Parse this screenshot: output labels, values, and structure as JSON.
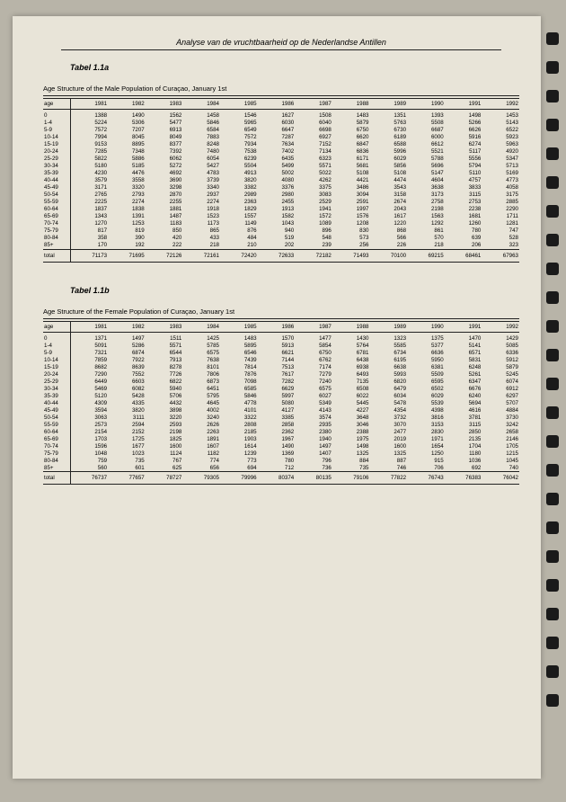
{
  "header": "Analyse van de vruchtbaarheid op de Nederlandse Antillen",
  "tableA": {
    "title": "Tabel 1.1a",
    "subtitle": "Age Structure of the Male Population of Curaçao, January 1st",
    "ageHeader": "age",
    "years": [
      "1981",
      "1982",
      "1983",
      "1984",
      "1985",
      "1986",
      "1987",
      "1988",
      "1989",
      "1990",
      "1991",
      "1992"
    ],
    "rows": [
      {
        "age": "0",
        "v": [
          "1388",
          "1490",
          "1562",
          "1458",
          "1546",
          "1627",
          "1508",
          "1483",
          "1351",
          "1393",
          "1498",
          "1453"
        ]
      },
      {
        "age": "1-4",
        "v": [
          "5224",
          "5306",
          "5477",
          "5846",
          "5965",
          "6030",
          "6040",
          "5879",
          "5763",
          "5508",
          "5266",
          "5143"
        ]
      },
      {
        "age": "5-9",
        "v": [
          "7572",
          "7207",
          "6913",
          "6584",
          "6549",
          "6647",
          "6698",
          "6750",
          "6730",
          "6687",
          "6626",
          "6522"
        ]
      },
      {
        "age": "10-14",
        "v": [
          "7994",
          "8045",
          "8049",
          "7883",
          "7572",
          "7287",
          "6927",
          "6620",
          "6189",
          "6000",
          "5916",
          "5923"
        ]
      },
      {
        "age": "15-19",
        "v": [
          "9153",
          "8895",
          "8377",
          "8248",
          "7934",
          "7634",
          "7152",
          "6847",
          "6588",
          "6612",
          "6274",
          "5963"
        ]
      },
      {
        "age": "20-24",
        "v": [
          "7285",
          "7348",
          "7392",
          "7480",
          "7538",
          "7402",
          "7134",
          "6836",
          "5996",
          "5521",
          "5117",
          "4920"
        ]
      },
      {
        "age": "25-29",
        "v": [
          "5822",
          "5886",
          "6062",
          "6054",
          "6239",
          "6435",
          "6323",
          "6171",
          "6029",
          "5788",
          "5556",
          "5347"
        ]
      },
      {
        "age": "30-34",
        "v": [
          "5180",
          "5185",
          "5272",
          "5427",
          "5504",
          "5499",
          "5571",
          "5681",
          "5856",
          "5696",
          "5794",
          "5713"
        ]
      },
      {
        "age": "35-39",
        "v": [
          "4230",
          "4476",
          "4692",
          "4783",
          "4913",
          "5002",
          "5022",
          "5108",
          "5108",
          "5147",
          "5110",
          "5169"
        ]
      },
      {
        "age": "40-44",
        "v": [
          "3579",
          "3558",
          "3690",
          "3739",
          "3820",
          "4080",
          "4262",
          "4421",
          "4474",
          "4604",
          "4757",
          "4773"
        ]
      },
      {
        "age": "45-49",
        "v": [
          "3171",
          "3320",
          "3298",
          "3340",
          "3382",
          "3376",
          "3375",
          "3486",
          "3543",
          "3638",
          "3833",
          "4058"
        ]
      },
      {
        "age": "50-54",
        "v": [
          "2765",
          "2793",
          "2870",
          "2937",
          "2989",
          "2980",
          "3083",
          "3094",
          "3158",
          "3173",
          "3115",
          "3175"
        ]
      },
      {
        "age": "55-59",
        "v": [
          "2225",
          "2274",
          "2255",
          "2274",
          "2363",
          "2455",
          "2529",
          "2591",
          "2674",
          "2758",
          "2753",
          "2885"
        ]
      },
      {
        "age": "60-64",
        "v": [
          "1837",
          "1838",
          "1881",
          "1918",
          "1829",
          "1913",
          "1941",
          "1997",
          "2043",
          "2198",
          "2238",
          "2290"
        ]
      },
      {
        "age": "65-69",
        "v": [
          "1343",
          "1391",
          "1487",
          "1523",
          "1557",
          "1582",
          "1572",
          "1576",
          "1617",
          "1563",
          "1681",
          "1711"
        ]
      },
      {
        "age": "70-74",
        "v": [
          "1270",
          "1253",
          "1183",
          "1173",
          "1149",
          "1043",
          "1089",
          "1208",
          "1220",
          "1292",
          "1260",
          "1281"
        ]
      },
      {
        "age": "75-79",
        "v": [
          "817",
          "819",
          "850",
          "865",
          "876",
          "940",
          "896",
          "830",
          "868",
          "861",
          "780",
          "747"
        ]
      },
      {
        "age": "80-84",
        "v": [
          "358",
          "390",
          "420",
          "433",
          "484",
          "519",
          "548",
          "573",
          "566",
          "570",
          "639",
          "528"
        ]
      },
      {
        "age": "85+",
        "v": [
          "170",
          "192",
          "222",
          "218",
          "210",
          "202",
          "239",
          "256",
          "226",
          "218",
          "206",
          "323"
        ]
      }
    ],
    "totalLabel": "total",
    "totals": [
      "71173",
      "71695",
      "72126",
      "72161",
      "72420",
      "72633",
      "72182",
      "71493",
      "70100",
      "69215",
      "68461",
      "67963"
    ]
  },
  "tableB": {
    "title": "Tabel 1.1b",
    "subtitle": "Age Structure of the Female Population of Curaçao, January 1st",
    "ageHeader": "age",
    "years": [
      "1981",
      "1982",
      "1983",
      "1984",
      "1985",
      "1986",
      "1987",
      "1988",
      "1989",
      "1990",
      "1991",
      "1992"
    ],
    "rows": [
      {
        "age": "0",
        "v": [
          "1371",
          "1497",
          "1511",
          "1425",
          "1483",
          "1570",
          "1477",
          "1430",
          "1323",
          "1375",
          "1470",
          "1429"
        ]
      },
      {
        "age": "1-4",
        "v": [
          "5091",
          "5286",
          "5571",
          "5785",
          "5895",
          "5913",
          "5854",
          "5764",
          "5585",
          "5377",
          "5141",
          "5085"
        ]
      },
      {
        "age": "5-9",
        "v": [
          "7321",
          "6874",
          "6544",
          "6575",
          "6546",
          "6621",
          "6750",
          "6781",
          "6734",
          "6636",
          "6571",
          "6336"
        ]
      },
      {
        "age": "10-14",
        "v": [
          "7859",
          "7922",
          "7913",
          "7638",
          "7439",
          "7144",
          "6762",
          "6438",
          "6195",
          "5950",
          "5831",
          "5912"
        ]
      },
      {
        "age": "15-19",
        "v": [
          "8682",
          "8639",
          "8278",
          "8101",
          "7814",
          "7513",
          "7174",
          "6938",
          "6638",
          "6381",
          "6248",
          "5879"
        ]
      },
      {
        "age": "20-24",
        "v": [
          "7290",
          "7552",
          "7726",
          "7806",
          "7876",
          "7617",
          "7279",
          "6493",
          "5993",
          "5509",
          "5261",
          "5245"
        ]
      },
      {
        "age": "25-29",
        "v": [
          "6449",
          "6603",
          "6822",
          "6873",
          "7098",
          "7282",
          "7240",
          "7135",
          "6820",
          "6595",
          "6347",
          "6074"
        ]
      },
      {
        "age": "30-34",
        "v": [
          "5469",
          "6082",
          "5940",
          "6451",
          "6585",
          "6629",
          "6575",
          "6508",
          "6479",
          "6502",
          "6676",
          "6912"
        ]
      },
      {
        "age": "35-39",
        "v": [
          "5120",
          "5428",
          "5706",
          "5795",
          "5846",
          "5997",
          "6027",
          "6022",
          "6034",
          "6029",
          "6240",
          "6297"
        ]
      },
      {
        "age": "40-44",
        "v": [
          "4309",
          "4335",
          "4432",
          "4645",
          "4778",
          "5080",
          "5349",
          "5445",
          "5478",
          "5539",
          "5694",
          "5707"
        ]
      },
      {
        "age": "45-49",
        "v": [
          "3594",
          "3820",
          "3898",
          "4002",
          "4101",
          "4127",
          "4143",
          "4227",
          "4354",
          "4398",
          "4616",
          "4884"
        ]
      },
      {
        "age": "50-54",
        "v": [
          "3063",
          "3111",
          "3220",
          "3240",
          "3322",
          "3385",
          "3574",
          "3648",
          "3732",
          "3816",
          "3781",
          "3730"
        ]
      },
      {
        "age": "55-59",
        "v": [
          "2573",
          "2594",
          "2593",
          "2626",
          "2808",
          "2858",
          "2935",
          "3046",
          "3070",
          "3153",
          "3115",
          "3242"
        ]
      },
      {
        "age": "60-64",
        "v": [
          "2154",
          "2152",
          "2198",
          "2263",
          "2185",
          "2362",
          "2380",
          "2388",
          "2477",
          "2830",
          "2850",
          "2658"
        ]
      },
      {
        "age": "65-69",
        "v": [
          "1703",
          "1725",
          "1825",
          "1891",
          "1903",
          "1967",
          "1940",
          "1975",
          "2019",
          "1971",
          "2135",
          "2146"
        ]
      },
      {
        "age": "70-74",
        "v": [
          "1596",
          "1677",
          "1600",
          "1607",
          "1614",
          "1490",
          "1497",
          "1498",
          "1600",
          "1654",
          "1704",
          "1705"
        ]
      },
      {
        "age": "75-79",
        "v": [
          "1048",
          "1023",
          "1124",
          "1182",
          "1239",
          "1369",
          "1407",
          "1325",
          "1325",
          "1250",
          "1180",
          "1215"
        ]
      },
      {
        "age": "80-84",
        "v": [
          "759",
          "735",
          "767",
          "774",
          "773",
          "780",
          "796",
          "884",
          "887",
          "915",
          "1036",
          "1045"
        ]
      },
      {
        "age": "85+",
        "v": [
          "560",
          "601",
          "625",
          "656",
          "694",
          "712",
          "736",
          "735",
          "746",
          "706",
          "692",
          "740"
        ]
      }
    ],
    "totalLabel": "total",
    "totals": [
      "76737",
      "77657",
      "78727",
      "79305",
      "79996",
      "80374",
      "80135",
      "79106",
      "77822",
      "76743",
      "76383",
      "76042"
    ]
  }
}
